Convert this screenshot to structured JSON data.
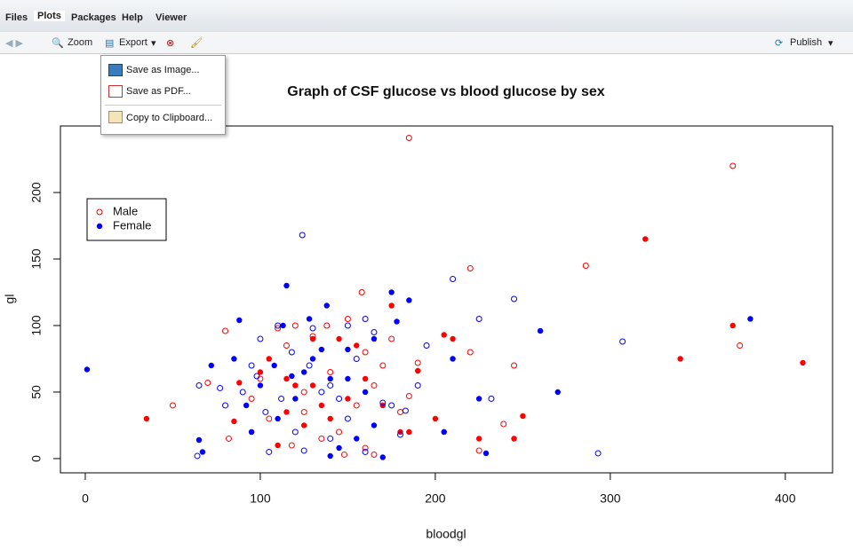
{
  "tabs": [
    "Files",
    "Plots",
    "Packages",
    "Help",
    "Viewer"
  ],
  "toolbar": {
    "zoom": "Zoom",
    "export": "Export",
    "publish": "Publish"
  },
  "menu": [
    "Save as Image...",
    "Save as PDF...",
    "Copy to Clipboard..."
  ],
  "chart_data": {
    "type": "scatter",
    "title": "Graph of CSF glucose vs blood glucose by sex",
    "xlabel": "bloodgl",
    "ylabel": "gl",
    "xlim": [
      -14.2,
      427
    ],
    "ylim": [
      -10.7,
      250
    ],
    "xticks": [
      0,
      100,
      200,
      300,
      400
    ],
    "yticks": [
      0,
      50,
      100,
      150,
      200
    ],
    "grid": false,
    "legend": "upper left",
    "series": [
      {
        "name": "Male",
        "color": "#ff0000",
        "marker": "open",
        "x": [
          185,
          370,
          286,
          220,
          158,
          374,
          245,
          220,
          239,
          225,
          50,
          80,
          82,
          70,
          110,
          120,
          130,
          138,
          150,
          160,
          170,
          165,
          155,
          145,
          160,
          180,
          185,
          190,
          175,
          100,
          105,
          95,
          115,
          125,
          135,
          140,
          125,
          118,
          148,
          165
        ],
        "values": [
          241,
          220,
          145,
          143,
          125,
          85,
          70,
          80,
          26,
          6,
          40,
          96,
          15,
          57,
          98,
          100,
          92,
          100,
          105,
          80,
          70,
          55,
          40,
          20,
          8,
          35,
          47,
          72,
          90,
          60,
          30,
          45,
          85,
          50,
          15,
          65,
          35,
          10,
          3,
          3
        ]
      },
      {
        "color": "#ff0000",
        "marker": "filled",
        "x": [
          35,
          85,
          88,
          105,
          115,
          130,
          145,
          155,
          175,
          200,
          205,
          210,
          225,
          245,
          250,
          320,
          340,
          370,
          410,
          95,
          110,
          125,
          140,
          160,
          180,
          185,
          150,
          120,
          100,
          135,
          130,
          170,
          190,
          205,
          115
        ],
        "values": [
          30,
          28,
          57,
          75,
          60,
          90,
          90,
          85,
          115,
          30,
          93,
          90,
          15,
          15,
          32,
          165,
          75,
          100,
          72,
          20,
          10,
          25,
          30,
          60,
          20,
          20,
          45,
          55,
          65,
          40,
          55,
          40,
          66,
          20,
          35
        ]
      },
      {
        "color": "#0000ff",
        "marker": "open",
        "x": [
          124,
          210,
          245,
          225,
          307,
          293,
          232,
          180,
          175,
          190,
          150,
          160,
          130,
          110,
          100,
          95,
          90,
          80,
          64,
          65,
          77,
          105,
          125,
          140,
          160,
          170,
          145,
          135,
          118,
          128,
          155,
          165,
          183,
          195,
          140,
          120,
          112,
          103,
          150,
          98
        ],
        "values": [
          168,
          135,
          120,
          105,
          88,
          4,
          45,
          18,
          40,
          55,
          100,
          105,
          98,
          100,
          90,
          70,
          50,
          40,
          2,
          55,
          53,
          5,
          6,
          15,
          5,
          42,
          45,
          50,
          80,
          70,
          75,
          95,
          36,
          85,
          55,
          20,
          45,
          35,
          30,
          62
        ]
      },
      {
        "name": "Female",
        "color": "#0000ff",
        "marker": "filled",
        "x": [
          1,
          72,
          65,
          67,
          88,
          115,
          128,
          138,
          175,
          185,
          178,
          210,
          260,
          270,
          380,
          229,
          225,
          205,
          150,
          165,
          140,
          120,
          110,
          100,
          95,
          130,
          155,
          160,
          170,
          165,
          145,
          140,
          125,
          108,
          118,
          92,
          85,
          150,
          135,
          113
        ],
        "values": [
          67,
          70,
          14,
          5,
          104,
          130,
          105,
          115,
          125,
          119,
          103,
          75,
          96,
          50,
          105,
          4,
          45,
          20,
          82,
          90,
          60,
          45,
          30,
          55,
          20,
          75,
          15,
          50,
          1,
          25,
          8,
          2,
          65,
          70,
          62,
          40,
          75,
          60,
          82,
          100
        ]
      }
    ]
  }
}
